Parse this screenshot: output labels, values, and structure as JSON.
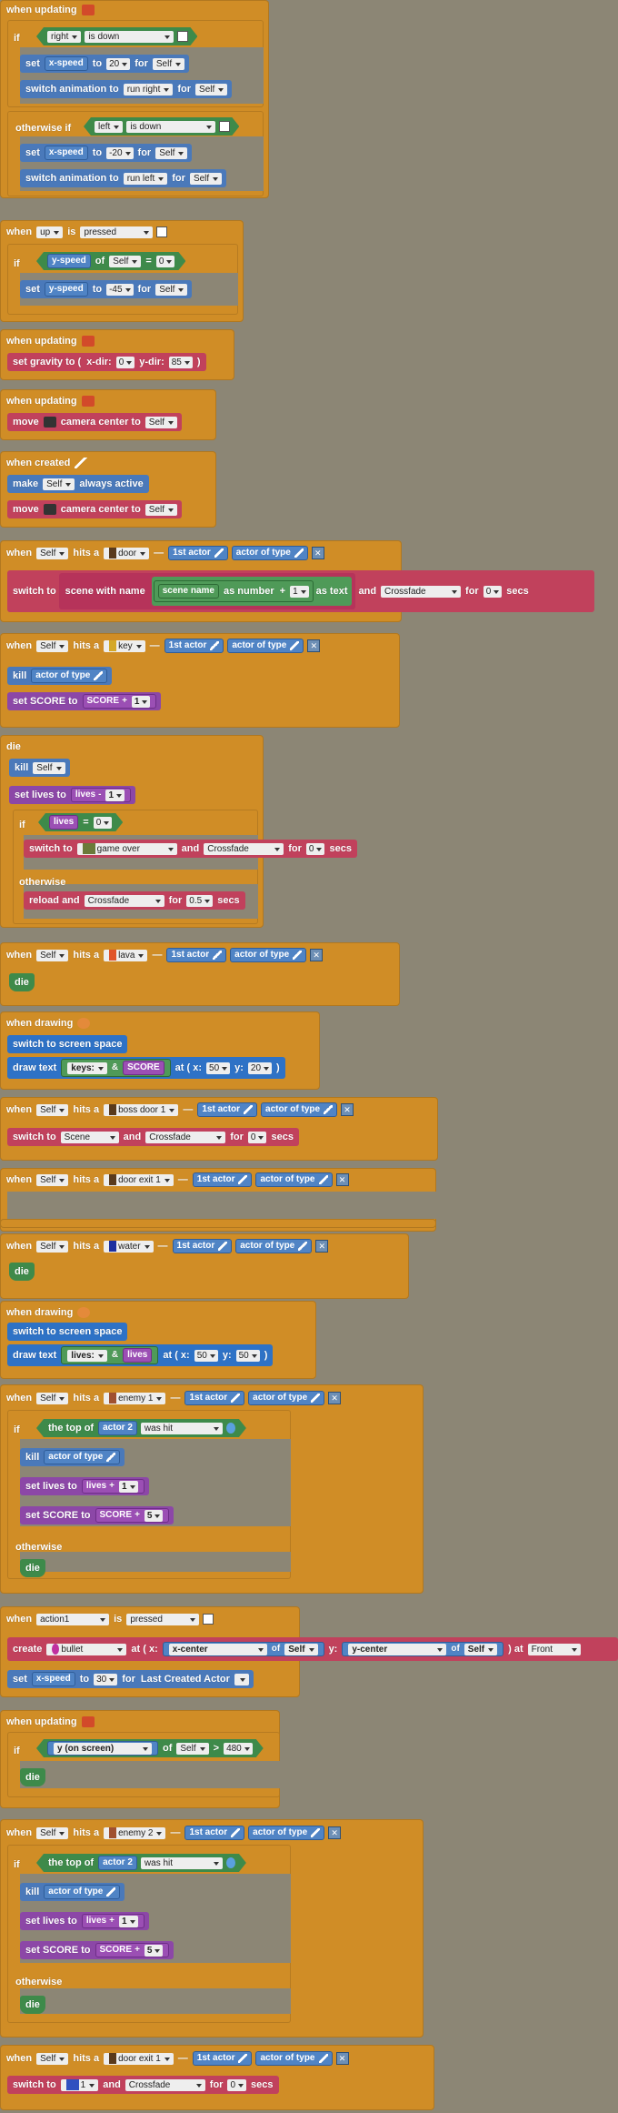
{
  "labels": {
    "when_updating": "when updating",
    "when_created": "when created",
    "when_drawing": "when drawing",
    "when": "when",
    "is": "is",
    "hits_a": "hits a",
    "if": "if",
    "otherwise_if": "otherwise if",
    "otherwise": "otherwise",
    "set": "set",
    "to": "to",
    "for": "for",
    "switch_animation_to": "switch animation to",
    "of": "of",
    "set_gravity_to": "set gravity to (",
    "x_dir": "x-dir:",
    "y_dir": "y-dir:",
    "close": ")",
    "move": "move",
    "camera_center_to": "camera center to",
    "make": "make",
    "always_active": "always active",
    "first_actor": "1st actor",
    "actor_of_type": "actor of type",
    "switch_to": "switch to",
    "scene_with_name": "scene with name",
    "scene_name": "scene name",
    "as_number": "as number",
    "plus": "+",
    "minus": "-",
    "as_text": "as text",
    "and": "and",
    "secs": "secs",
    "kill": "kill",
    "set_score_to": "set SCORE to",
    "score": "SCORE",
    "die": "die",
    "set_lives_to": "set lives to",
    "lives": "lives",
    "eq": "=",
    "reload_and": "reload and",
    "switch_to_screen_space": "switch to screen space",
    "draw_text": "draw text",
    "at_x": "at ( x:",
    "y": "y:",
    "amp": "&",
    "the_top_of": "the top of",
    "actor_2": "actor 2",
    "was_hit": "was hit",
    "create": "create",
    "at_paren": ") at (",
    "x_center": "x-center",
    "y_center": "y-center",
    "last_created_actor": "Last Created Actor",
    "gt": ">",
    "dash": "—",
    "at": ") at"
  },
  "values": {
    "right": "right",
    "is_down": "is down",
    "x_speed": "x-speed",
    "v20": "20",
    "self": "Self",
    "run_right": "run right",
    "left": "left",
    "vm20": "-20",
    "run_left": "run left",
    "up": "up",
    "pressed": "pressed",
    "y_speed": "y-speed",
    "v0": "0",
    "vm45": "-45",
    "v85": "85",
    "door": "door",
    "v1": "1",
    "crossfade": "Crossfade",
    "key": "key",
    "game_over": "game over",
    "v05": "0.5",
    "lava": "lava",
    "keys": "keys:",
    "v50": "50",
    "v20b": "20",
    "boss_door_1": "boss door 1",
    "scene": "Scene",
    "door_exit_1": "door exit 1",
    "water": "water",
    "lives_txt": "lives:",
    "enemy_1": "enemy 1",
    "v5": "5",
    "action1": "action1",
    "bullet": "bullet",
    "front": "Front",
    "v30": "30",
    "y_on_screen": "y (on screen)",
    "v480": "480",
    "enemy_2": "enemy 2",
    "one": "1"
  },
  "colors": {
    "event": "#d08d26",
    "action_red": "#c1415c",
    "action_blue": "#4a79ba",
    "condition_green": "#3e8a4a",
    "variable_purple": "#8c47a7",
    "draw_blue": "#2e72c6",
    "background": "#8c8675"
  }
}
